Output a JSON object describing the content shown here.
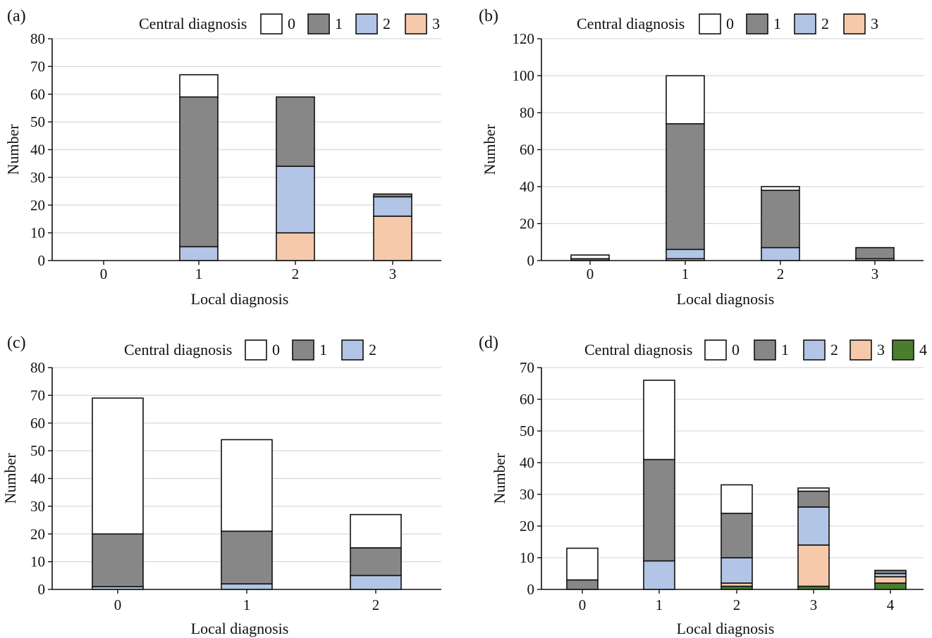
{
  "legend_colors": {
    "0": "#ffffff",
    "1": "#878787",
    "2": "#b2c5e6",
    "3": "#f6c9ab",
    "4": "#4b7d2e"
  },
  "chart_data": [
    {
      "panel": "(a)",
      "type": "bar",
      "stacked": true,
      "legend_title": "Central diagnosis",
      "legend_entries": [
        "0",
        "1",
        "2",
        "3"
      ],
      "xlabel": "Local diagnosis",
      "ylabel": "Number",
      "categories": [
        "0",
        "1",
        "2",
        "3"
      ],
      "ylim": [
        0,
        80
      ],
      "yticks": [
        "0",
        "10",
        "20",
        "30",
        "40",
        "50",
        "60",
        "70",
        "80"
      ],
      "series": [
        {
          "name": "3",
          "values": [
            0,
            0,
            10,
            16
          ]
        },
        {
          "name": "2",
          "values": [
            0,
            5,
            24,
            7
          ]
        },
        {
          "name": "1",
          "values": [
            0,
            54,
            25,
            1
          ]
        },
        {
          "name": "0",
          "values": [
            0,
            8,
            0,
            0
          ]
        }
      ]
    },
    {
      "panel": "(b)",
      "type": "bar",
      "stacked": true,
      "legend_title": "Central diagnosis",
      "legend_entries": [
        "0",
        "1",
        "2",
        "3"
      ],
      "xlabel": "Local diagnosis",
      "ylabel": "Number",
      "categories": [
        "0",
        "1",
        "2",
        "3"
      ],
      "ylim": [
        0,
        120
      ],
      "yticks": [
        "0",
        "20",
        "40",
        "60",
        "80",
        "100",
        "120"
      ],
      "series": [
        {
          "name": "3",
          "values": [
            0,
            1,
            0,
            0
          ]
        },
        {
          "name": "2",
          "values": [
            0,
            5,
            7,
            1
          ]
        },
        {
          "name": "1",
          "values": [
            1,
            68,
            31,
            6
          ]
        },
        {
          "name": "0",
          "values": [
            2,
            26,
            2,
            0
          ]
        }
      ]
    },
    {
      "panel": "(c)",
      "type": "bar",
      "stacked": true,
      "legend_title": "Central diagnosis",
      "legend_entries": [
        "0",
        "1",
        "2"
      ],
      "xlabel": "Local diagnosis",
      "ylabel": "Number",
      "categories": [
        "0",
        "1",
        "2"
      ],
      "ylim": [
        0,
        80
      ],
      "yticks": [
        "0",
        "10",
        "20",
        "30",
        "40",
        "50",
        "60",
        "70",
        "80"
      ],
      "series": [
        {
          "name": "2",
          "values": [
            1,
            2,
            5
          ]
        },
        {
          "name": "1",
          "values": [
            19,
            19,
            10
          ]
        },
        {
          "name": "0",
          "values": [
            49,
            33,
            12
          ]
        }
      ]
    },
    {
      "panel": "(d)",
      "type": "bar",
      "stacked": true,
      "legend_title": "Central diagnosis",
      "legend_entries": [
        "0",
        "1",
        "2",
        "3",
        "4"
      ],
      "xlabel": "Local diagnosis",
      "ylabel": "Number",
      "categories": [
        "0",
        "1",
        "2",
        "3",
        "4"
      ],
      "ylim": [
        0,
        70
      ],
      "yticks": [
        "0",
        "10",
        "20",
        "30",
        "40",
        "50",
        "60",
        "70"
      ],
      "series": [
        {
          "name": "4",
          "values": [
            0,
            0,
            1,
            1,
            2
          ]
        },
        {
          "name": "3",
          "values": [
            0,
            0,
            1,
            13,
            2
          ]
        },
        {
          "name": "2",
          "values": [
            0,
            9,
            8,
            12,
            1
          ]
        },
        {
          "name": "1",
          "values": [
            3,
            32,
            14,
            5,
            1
          ]
        },
        {
          "name": "0",
          "values": [
            10,
            25,
            9,
            1,
            0
          ]
        }
      ]
    }
  ]
}
